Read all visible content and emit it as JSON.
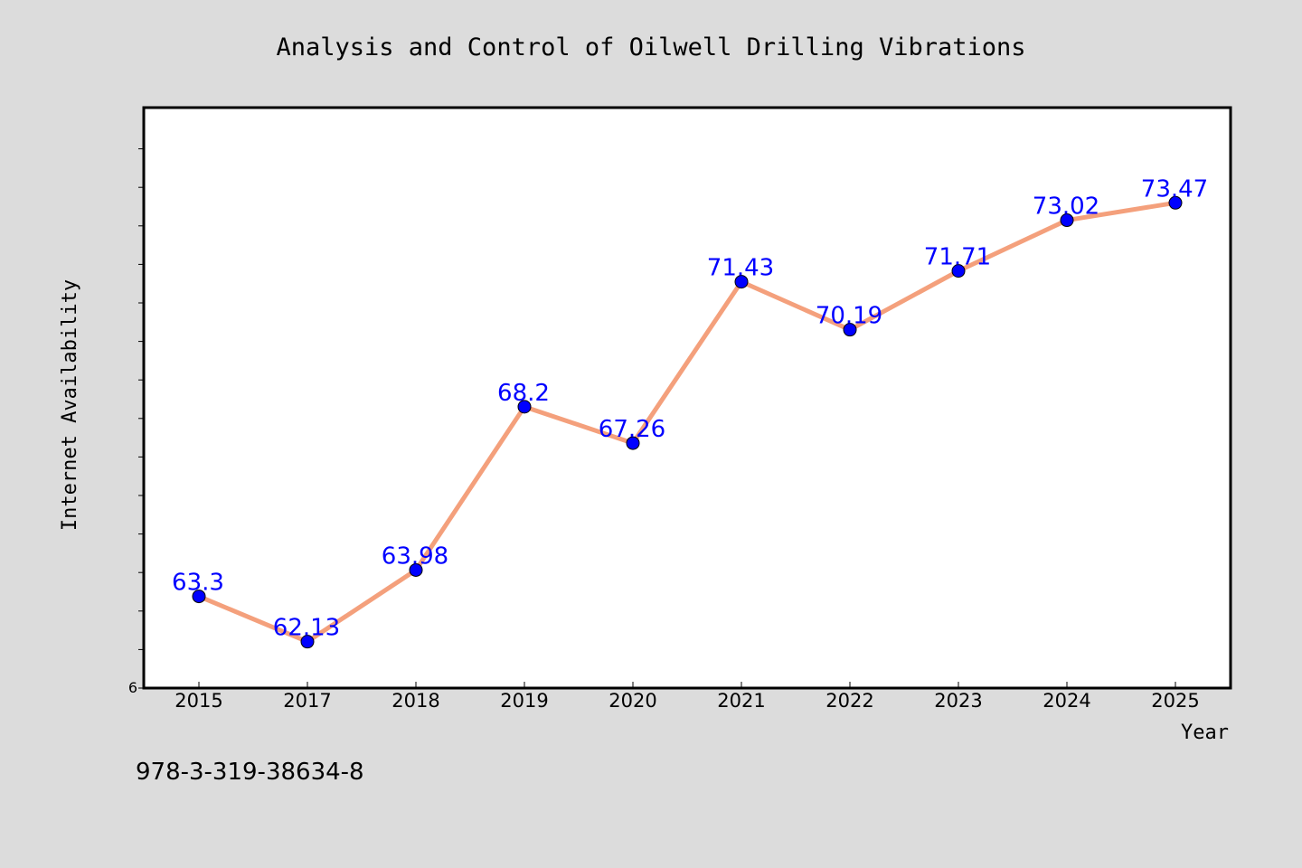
{
  "chart_data": {
    "type": "line",
    "title": "Analysis and Control of Oilwell Drilling Vibrations",
    "xlabel": "Year",
    "ylabel": "Internet Availability",
    "categories": [
      "2015",
      "2017",
      "2018",
      "2019",
      "2020",
      "2021",
      "2022",
      "2023",
      "2024",
      "2025"
    ],
    "series": [
      {
        "values": [
          63.3,
          62.13,
          63.98,
          68.2,
          67.26,
          71.43,
          70.19,
          71.71,
          73.02,
          73.47
        ],
        "labels": [
          "63.3",
          "62.13",
          "63.98",
          "68.2",
          "67.26",
          "71.43",
          "70.19",
          "71.71",
          "73.02",
          "73.47"
        ]
      }
    ],
    "ylim": [
      60.93,
      75.93
    ],
    "y_tick_labels": [
      "6"
    ],
    "grid": false,
    "line_color": "#f4a07c",
    "marker_color": "#0000ff",
    "label_color": "#0000ff"
  },
  "footer_text": "978-3-319-38634-8",
  "colors": {
    "background": "#dcdcdc",
    "plot_background": "#ffffff"
  }
}
